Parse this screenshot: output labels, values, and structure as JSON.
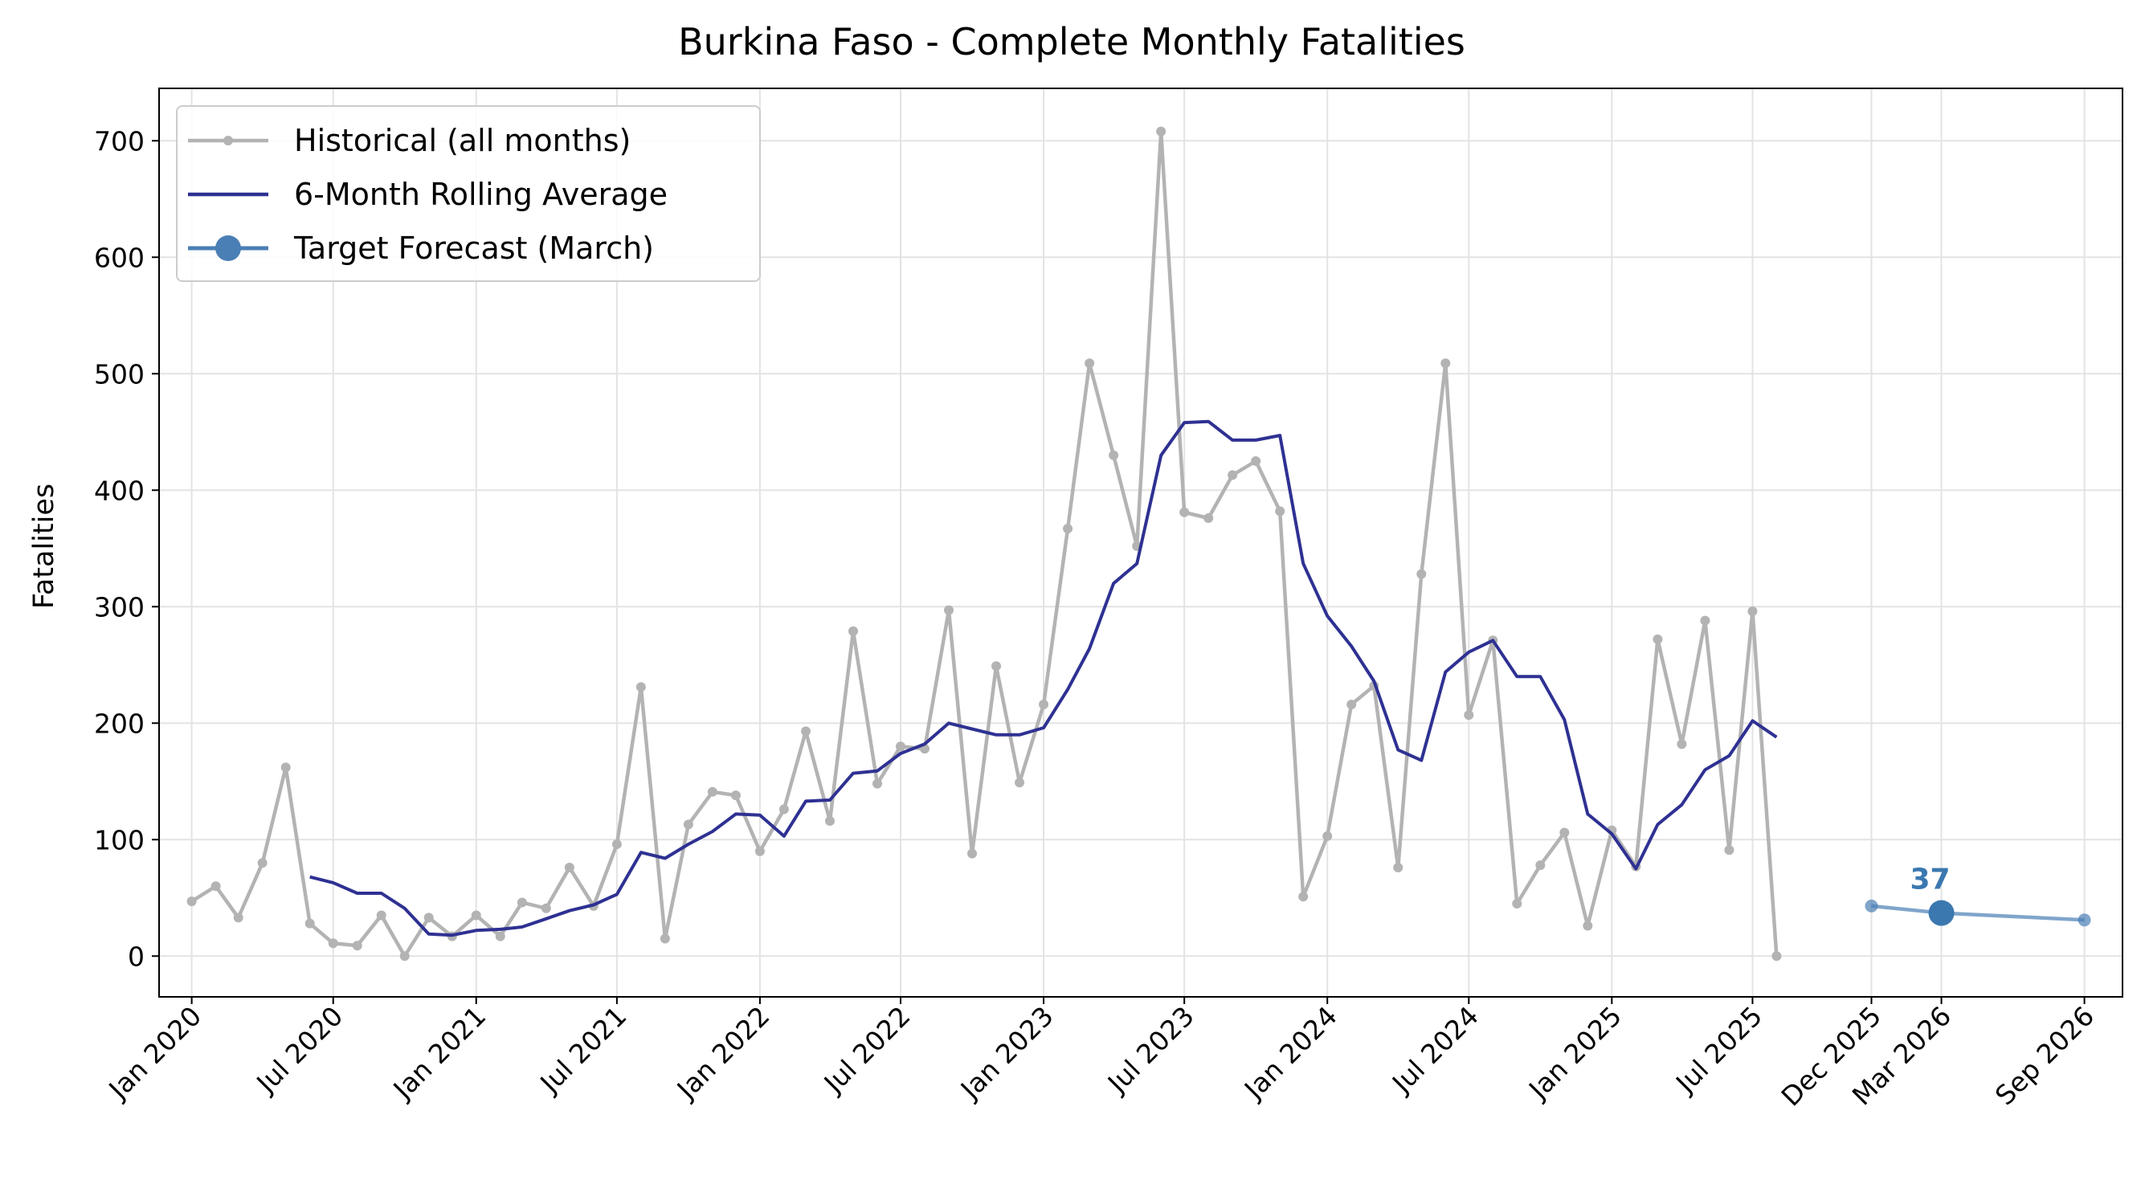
{
  "chart_data": {
    "type": "line",
    "title": "Burkina Faso - Complete Monthly Fatalities",
    "xlabel": "",
    "ylabel": "Fatalities",
    "ylim": [
      -35,
      745
    ],
    "yticks": [
      0,
      100,
      200,
      300,
      400,
      500,
      600,
      700
    ],
    "xlim": [
      "2019-11-20",
      "2026-10-20"
    ],
    "xticks": [
      {
        "date": "2020-01",
        "label": "Jan 2020"
      },
      {
        "date": "2020-07",
        "label": "Jul 2020"
      },
      {
        "date": "2021-01",
        "label": "Jan 2021"
      },
      {
        "date": "2021-07",
        "label": "Jul 2021"
      },
      {
        "date": "2022-01",
        "label": "Jan 2022"
      },
      {
        "date": "2022-07",
        "label": "Jul 2022"
      },
      {
        "date": "2023-01",
        "label": "Jan 2023"
      },
      {
        "date": "2023-07",
        "label": "Jul 2023"
      },
      {
        "date": "2024-01",
        "label": "Jan 2024"
      },
      {
        "date": "2024-07",
        "label": "Jul 2024"
      },
      {
        "date": "2025-01",
        "label": "Jan 2025"
      },
      {
        "date": "2025-07",
        "label": "Jul 2025"
      },
      {
        "date": "2025-12",
        "label": "Dec 2025"
      },
      {
        "date": "2026-03",
        "label": "Mar 2026"
      },
      {
        "date": "2026-09",
        "label": "Sep 2026"
      }
    ],
    "grid": true,
    "legend_position": "top-left",
    "series": [
      {
        "name": "Historical (all months)",
        "color": "#b3b3b3",
        "marker": "dot",
        "start": "2020-01",
        "values": [
          47,
          60,
          33,
          80,
          162,
          28,
          11,
          9,
          35,
          0,
          33,
          17,
          35,
          17,
          46,
          41,
          76,
          43,
          96,
          231,
          15,
          113,
          141,
          138,
          90,
          126,
          193,
          116,
          279,
          148,
          180,
          178,
          297,
          88,
          249,
          149,
          216,
          367,
          509,
          430,
          352,
          708,
          381,
          376,
          413,
          425,
          382,
          51,
          103,
          216,
          232,
          76,
          328,
          509,
          207,
          271,
          45,
          78,
          106,
          26,
          108,
          77,
          272,
          182,
          288,
          91,
          296,
          0
        ]
      },
      {
        "name": "6-Month Rolling Average",
        "color": "#2e3192",
        "marker": "none",
        "start": "2020-06",
        "values": [
          68,
          63,
          54,
          54,
          41,
          19,
          18,
          22,
          23,
          25,
          32,
          39,
          44,
          53,
          89,
          84,
          96,
          107,
          122,
          121,
          103,
          133,
          134,
          157,
          159,
          174,
          182,
          200,
          195,
          190,
          190,
          196,
          229,
          264,
          320,
          337,
          430,
          458,
          459,
          443,
          443,
          447,
          337,
          292,
          266,
          236,
          177,
          168,
          244,
          261,
          271,
          240,
          240,
          203,
          122,
          105,
          75,
          113,
          130,
          160,
          172,
          202,
          188
        ]
      },
      {
        "name": "Target Forecast (March)",
        "color": "#4a7fb5",
        "marker": "large-dot",
        "points": [
          {
            "date": "2025-12",
            "value": 43
          },
          {
            "date": "2026-03",
            "value": 37
          },
          {
            "date": "2026-09",
            "value": 31
          }
        ]
      }
    ],
    "annotations": [
      {
        "text": "37",
        "date": "2026-03",
        "value": 37,
        "color": "#3b78b0"
      }
    ]
  }
}
